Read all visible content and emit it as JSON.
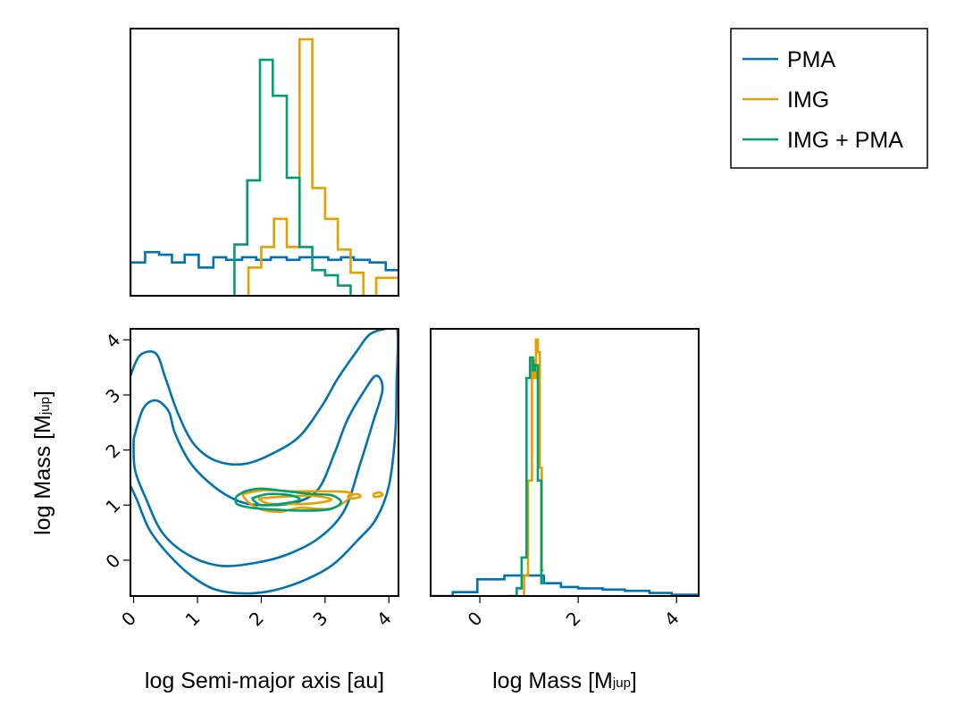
{
  "chart_data": [
    {
      "type": "histogram",
      "panel": "top-left",
      "x_variable": "log Semi-major axis",
      "xlim": [
        -0.05,
        4.15
      ],
      "ylim": [
        0,
        1.0
      ],
      "yticks_shown": false,
      "xticks_shown": false,
      "series": [
        {
          "key": "PMA",
          "color": "#0072b2",
          "edges": [
            -0.05,
            0.18,
            0.4,
            0.6,
            0.8,
            1.02,
            1.25,
            1.45,
            1.7,
            1.92,
            2.15,
            2.4,
            2.6,
            2.82,
            3.05,
            3.25,
            3.45,
            3.7,
            3.95,
            4.15
          ],
          "values": [
            0.13,
            0.17,
            0.16,
            0.13,
            0.16,
            0.11,
            0.15,
            0.14,
            0.15,
            0.14,
            0.15,
            0.14,
            0.15,
            0.15,
            0.14,
            0.15,
            0.14,
            0.13,
            0.1
          ]
        },
        {
          "key": "IMG",
          "color": "#e69f00",
          "edges": [
            1.8,
            2.0,
            2.2,
            2.4,
            2.6,
            2.8,
            3.0,
            3.2,
            3.4,
            3.6,
            3.8,
            4.15
          ],
          "values": [
            0.11,
            0.19,
            0.3,
            0.19,
            1.0,
            0.42,
            0.3,
            0.18,
            0.09,
            -0.02,
            0.07
          ]
        },
        {
          "key": "IMG + PMA",
          "color": "#009e73",
          "edges": [
            1.58,
            1.78,
            1.98,
            2.18,
            2.4,
            2.6,
            2.8,
            3.0,
            3.2,
            3.4,
            3.6
          ],
          "values": [
            0.2,
            0.45,
            0.92,
            0.78,
            0.46,
            0.19,
            0.1,
            0.08,
            0.04,
            -0.02
          ]
        }
      ]
    },
    {
      "type": "contour",
      "panel": "bottom-left",
      "xlabel": "log Semi-major axis [au]",
      "ylabel": "log Mass [M",
      "ylabel_sub": "jup",
      "ylabel_suffix": "]",
      "xlim": [
        -0.05,
        4.15
      ],
      "ylim": [
        -0.65,
        4.2
      ],
      "xticks": [
        0,
        1,
        2,
        3,
        4
      ],
      "yticks": [
        0,
        1,
        2,
        3,
        4
      ],
      "contours": [
        {
          "key": "PMA",
          "color": "#0072b2",
          "points": [
            [
              -0.05,
              1.35
            ],
            [
              0.05,
              1.1
            ],
            [
              0.25,
              0.55
            ],
            [
              0.55,
              0.1
            ],
            [
              0.9,
              -0.28
            ],
            [
              1.25,
              -0.52
            ],
            [
              1.65,
              -0.6
            ],
            [
              2.1,
              -0.57
            ],
            [
              2.6,
              -0.4
            ],
            [
              3.1,
              -0.1
            ],
            [
              3.5,
              0.35
            ],
            [
              3.8,
              0.75
            ],
            [
              4.0,
              1.35
            ],
            [
              4.1,
              2.3
            ],
            [
              4.12,
              3.2
            ],
            [
              4.13,
              4.2
            ],
            [
              3.95,
              4.2
            ],
            [
              3.7,
              4.1
            ],
            [
              3.5,
              3.8
            ],
            [
              3.2,
              3.3
            ],
            [
              2.95,
              2.8
            ],
            [
              2.6,
              2.25
            ],
            [
              2.2,
              1.95
            ],
            [
              1.75,
              1.75
            ],
            [
              1.3,
              1.8
            ],
            [
              0.95,
              2.1
            ],
            [
              0.7,
              2.65
            ],
            [
              0.5,
              3.3
            ],
            [
              0.35,
              3.75
            ],
            [
              0.1,
              3.72
            ],
            [
              -0.05,
              3.35
            ]
          ]
        },
        {
          "key": "PMA",
          "color": "#0072b2",
          "points": [
            [
              0.0,
              2.2
            ],
            [
              0.15,
              2.75
            ],
            [
              0.35,
              2.9
            ],
            [
              0.55,
              2.7
            ],
            [
              0.65,
              2.3
            ],
            [
              0.9,
              1.75
            ],
            [
              1.3,
              1.3
            ],
            [
              1.7,
              1.05
            ],
            [
              2.1,
              1.0
            ],
            [
              2.55,
              1.05
            ],
            [
              2.9,
              1.3
            ],
            [
              3.15,
              1.95
            ],
            [
              3.35,
              2.55
            ],
            [
              3.6,
              3.05
            ],
            [
              3.8,
              3.35
            ],
            [
              3.9,
              3.1
            ],
            [
              3.75,
              2.5
            ],
            [
              3.55,
              1.75
            ],
            [
              3.3,
              0.9
            ],
            [
              2.9,
              0.4
            ],
            [
              2.4,
              0.1
            ],
            [
              1.9,
              -0.05
            ],
            [
              1.35,
              -0.1
            ],
            [
              0.85,
              0.1
            ],
            [
              0.45,
              0.5
            ],
            [
              0.2,
              1.1
            ],
            [
              0.02,
              1.65
            ],
            [
              0.0,
              2.2
            ]
          ]
        },
        {
          "key": "IMG",
          "color": "#e69f00",
          "points": [
            [
              1.7,
              1.2
            ],
            [
              2.05,
              1.27
            ],
            [
              2.5,
              1.25
            ],
            [
              3.0,
              1.25
            ],
            [
              3.4,
              1.22
            ],
            [
              3.3,
              1.05
            ],
            [
              3.05,
              0.93
            ],
            [
              2.6,
              0.95
            ],
            [
              2.3,
              0.88
            ],
            [
              2.0,
              0.92
            ],
            [
              1.8,
              1.05
            ],
            [
              1.7,
              1.2
            ]
          ]
        },
        {
          "key": "IMG",
          "color": "#e69f00",
          "points": [
            [
              1.95,
              1.12
            ],
            [
              2.3,
              1.15
            ],
            [
              2.8,
              1.17
            ],
            [
              3.1,
              1.1
            ],
            [
              2.8,
              1.03
            ],
            [
              2.4,
              1.02
            ],
            [
              2.1,
              1.03
            ],
            [
              1.95,
              1.12
            ]
          ]
        },
        {
          "key": "IMG",
          "color": "#e69f00",
          "points": [
            [
              3.35,
              1.17
            ],
            [
              3.5,
              1.2
            ],
            [
              3.55,
              1.15
            ],
            [
              3.4,
              1.12
            ],
            [
              3.35,
              1.17
            ]
          ]
        },
        {
          "key": "IMG",
          "color": "#e69f00",
          "points": [
            [
              3.75,
              1.2
            ],
            [
              3.85,
              1.23
            ],
            [
              3.9,
              1.18
            ],
            [
              3.78,
              1.15
            ],
            [
              3.75,
              1.2
            ]
          ]
        },
        {
          "key": "IMG + PMA",
          "color": "#009e73",
          "points": [
            [
              1.6,
              1.15
            ],
            [
              1.75,
              1.25
            ],
            [
              2.0,
              1.3
            ],
            [
              2.4,
              1.25
            ],
            [
              2.8,
              1.2
            ],
            [
              3.1,
              1.18
            ],
            [
              3.25,
              1.05
            ],
            [
              3.05,
              0.92
            ],
            [
              2.6,
              0.9
            ],
            [
              2.2,
              0.92
            ],
            [
              1.85,
              0.95
            ],
            [
              1.62,
              1.02
            ],
            [
              1.6,
              1.15
            ]
          ]
        },
        {
          "key": "IMG + PMA",
          "color": "#009e73",
          "points": [
            [
              1.85,
              1.12
            ],
            [
              2.1,
              1.2
            ],
            [
              2.45,
              1.18
            ],
            [
              2.6,
              1.1
            ],
            [
              2.35,
              1.03
            ],
            [
              2.0,
              1.0
            ],
            [
              1.85,
              1.12
            ]
          ]
        }
      ]
    },
    {
      "type": "histogram",
      "panel": "bottom-right",
      "xlabel": "log Mass [M",
      "xlabel_sub": "jup",
      "xlabel_suffix": "]",
      "xlim": [
        -1.0,
        4.45
      ],
      "ylim": [
        0,
        1.0
      ],
      "xticks": [
        0,
        2,
        4
      ],
      "yticks_shown": false,
      "series": [
        {
          "key": "PMA",
          "color": "#0072b2",
          "edges": [
            -1.0,
            -0.55,
            -0.05,
            0.5,
            0.9,
            1.3,
            1.65,
            2.0,
            2.5,
            2.95,
            3.45,
            3.9,
            4.45
          ],
          "values": [
            0.0,
            0.015,
            0.065,
            0.08,
            0.08,
            0.05,
            0.035,
            0.03,
            0.025,
            0.02,
            0.012,
            0.005
          ]
        },
        {
          "key": "IMG",
          "color": "#e69f00",
          "edges": [
            0.9,
            0.98,
            1.06,
            1.1,
            1.14,
            1.18,
            1.22,
            1.26,
            1.3
          ],
          "values": [
            0.08,
            0.45,
            0.92,
            0.85,
            1.0,
            0.95,
            0.5,
            0.1
          ]
        },
        {
          "key": "IMG + PMA",
          "color": "#009e73",
          "edges": [
            0.55,
            0.75,
            0.85,
            0.95,
            1.02,
            1.08,
            1.12,
            1.18,
            1.25,
            1.35
          ],
          "values": [
            0.0,
            0.03,
            0.15,
            0.85,
            0.93,
            0.88,
            0.9,
            0.45,
            0.05
          ]
        }
      ]
    }
  ],
  "legend": {
    "position": "top-right",
    "entries": [
      {
        "label": "PMA",
        "color": "#0072b2"
      },
      {
        "label": "IMG",
        "color": "#e69f00"
      },
      {
        "label": "IMG + PMA",
        "color": "#009e73"
      }
    ]
  }
}
